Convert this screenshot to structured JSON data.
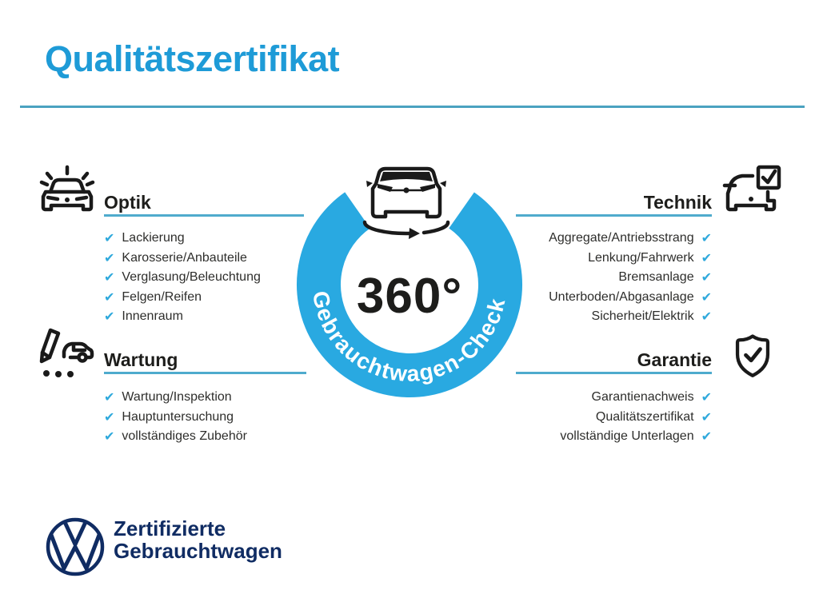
{
  "title": "Qualitätszertifikat",
  "check_glyph": "✔",
  "colors": {
    "title_blue": "#1e9bd7",
    "rule_teal": "#4aa2c0",
    "underline_teal": "#4fabcd",
    "ring_cyan": "#29a9e1",
    "check_cyan": "#2fa9dc",
    "heading_dark": "#1d1d1b",
    "text_dark": "#2e2e2c",
    "vw_navy": "#102c63"
  },
  "center": {
    "degree_label": "360°",
    "ring_label": "Gebrauchtwagen-Check"
  },
  "icons": {
    "optik": "car-shine-icon",
    "technik": "car-checkbox-icon",
    "wartung": "service-checklist-icon",
    "garantie": "shield-check-icon",
    "center": "car-front-rotation-icon",
    "footer": "vw-logo"
  },
  "sections": {
    "optik": {
      "label": "Optik",
      "items": [
        "Lackierung",
        "Karosserie/Anbauteile",
        "Verglasung/Beleuchtung",
        "Felgen/Reifen",
        "Innenraum"
      ]
    },
    "technik": {
      "label": "Technik",
      "items": [
        "Aggregate/Antriebsstrang",
        "Lenkung/Fahrwerk",
        "Bremsanlage",
        "Unterboden/Abgasanlage",
        "Sicherheit/Elektrik"
      ]
    },
    "wartung": {
      "label": "Wartung",
      "items": [
        "Wartung/Inspektion",
        "Hauptuntersuchung",
        "vollständiges Zubehör"
      ]
    },
    "garantie": {
      "label": "Garantie",
      "items": [
        "Garantienachweis",
        "Qualitätszertifikat",
        "vollständige Unterlagen"
      ]
    }
  },
  "footer": {
    "brand_line1": "Zertifizierte",
    "brand_line2": "Gebrauchtwagen"
  }
}
